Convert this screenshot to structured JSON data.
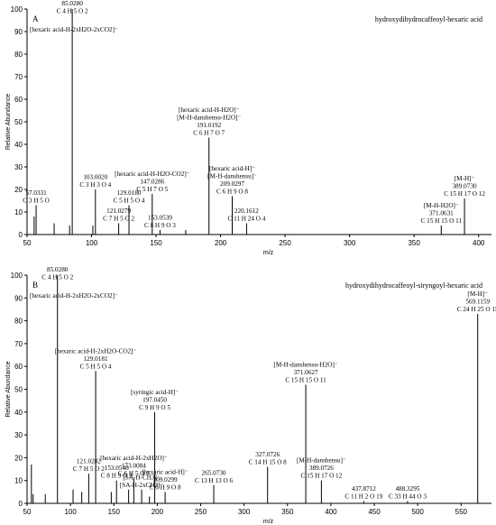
{
  "chart_data": [
    {
      "type": "bar",
      "panel": "A",
      "title": "hydroxydihydrocaffeoyl-hexaric acid",
      "xlabel": "m/z",
      "ylabel": "Relative Abundance",
      "xlim": [
        50,
        410
      ],
      "ylim": [
        0,
        100
      ],
      "xticks": [
        "50",
        "100",
        "150",
        "200",
        "250",
        "300",
        "350",
        "400"
      ],
      "yticks": [
        "0",
        "10",
        "20",
        "30",
        "40",
        "50",
        "60",
        "70",
        "80",
        "90",
        "100"
      ],
      "peaks": [
        {
          "mz": 55.5,
          "intensity": 8
        },
        {
          "mz": 57.03,
          "intensity": 13
        },
        {
          "mz": 71,
          "intensity": 5
        },
        {
          "mz": 83,
          "intensity": 4
        },
        {
          "mz": 85.03,
          "intensity": 100
        },
        {
          "mz": 101,
          "intensity": 4
        },
        {
          "mz": 103.0,
          "intensity": 20,
          "color": "#2e9a2e"
        },
        {
          "mz": 121.03,
          "intensity": 5
        },
        {
          "mz": 129.02,
          "intensity": 13
        },
        {
          "mz": 147.03,
          "intensity": 18
        },
        {
          "mz": 153.05,
          "intensity": 2
        },
        {
          "mz": 173,
          "intensity": 2
        },
        {
          "mz": 191.02,
          "intensity": 43
        },
        {
          "mz": 209.03,
          "intensity": 17
        },
        {
          "mz": 220.16,
          "intensity": 5
        },
        {
          "mz": 371.06,
          "intensity": 4
        },
        {
          "mz": 389.07,
          "intensity": 16
        }
      ],
      "labels": [
        {
          "lines": [
            "85.0280",
            "C 4 H 5 O 2",
            "[hexaric acid-H-2xH2O-2xCO2]⁻"
          ],
          "mz": 85.03,
          "intensity": 100,
          "align": "left"
        },
        {
          "lines": [
            "[hexaric acid-H-H2O]⁻",
            "[M-H-danshensu-H2O]⁻",
            "191.0192",
            "C 6 H 7 O 7"
          ],
          "mz": 191.02,
          "intensity": 43,
          "align": "middle"
        },
        {
          "lines": [
            "[hexaric acid-H]⁻",
            "[M-H-danshensu]⁻",
            "209.0297",
            "C 6 H 9 O 8"
          ],
          "mz": 209.03,
          "intensity": 17,
          "align": "middle"
        },
        {
          "lines": [
            "[hexaric acid-H-H2O-CO2]⁻",
            "147.0286",
            "C 5 H 7 O 5"
          ],
          "mz": 147.03,
          "intensity": 18,
          "align": "middle"
        },
        {
          "lines": [
            "103.0020",
            "C 3 H 3 O 4"
          ],
          "mz": 103.0,
          "intensity": 20,
          "align": "middle"
        },
        {
          "lines": [
            "129.0180",
            "C 5 H 5 O 4"
          ],
          "mz": 129.02,
          "intensity": 13,
          "align": "middle"
        },
        {
          "lines": [
            "121.0279",
            "C 7 H 5 O 2"
          ],
          "mz": 121.03,
          "intensity": 5,
          "align": "middle"
        },
        {
          "lines": [
            "153.0539",
            "C 8 H 9 O 3"
          ],
          "mz": 153.05,
          "intensity": 2,
          "align": "middle"
        },
        {
          "lines": [
            "57.0331",
            "C 3 H 5 O"
          ],
          "mz": 57.03,
          "intensity": 13,
          "align": "middle"
        },
        {
          "lines": [
            "220.1612",
            "C 11 H 24 O 4"
          ],
          "mz": 220.16,
          "intensity": 5,
          "align": "middle"
        },
        {
          "lines": [
            "[M-H-H2O]⁻",
            "371.0631",
            "C 15 H 15 O 11"
          ],
          "mz": 371.06,
          "intensity": 4,
          "align": "middle"
        },
        {
          "lines": [
            "[M-H]⁻",
            "389.0730",
            "C 15 H 17 O 12"
          ],
          "mz": 389.07,
          "intensity": 16,
          "align": "middle"
        }
      ]
    },
    {
      "type": "bar",
      "panel": "B",
      "title": "hydroxydihydrocaffeoyl-siryngoyl-hexaric acid",
      "xlabel": "m/z",
      "ylabel": "Relative Abundance",
      "xlim": [
        50,
        585
      ],
      "ylim": [
        0,
        100
      ],
      "xticks": [
        "50",
        "100",
        "150",
        "200",
        "250",
        "300",
        "350",
        "400",
        "450",
        "500",
        "550"
      ],
      "yticks": [
        "0",
        "10",
        "20",
        "30",
        "40",
        "50",
        "60",
        "70",
        "80",
        "90",
        "100"
      ],
      "peaks": [
        {
          "mz": 55,
          "intensity": 17
        },
        {
          "mz": 57,
          "intensity": 4
        },
        {
          "mz": 71,
          "intensity": 4
        },
        {
          "mz": 85.03,
          "intensity": 100
        },
        {
          "mz": 103,
          "intensity": 6
        },
        {
          "mz": 113,
          "intensity": 5
        },
        {
          "mz": 121.03,
          "intensity": 13
        },
        {
          "mz": 129.02,
          "intensity": 58
        },
        {
          "mz": 147,
          "intensity": 5
        },
        {
          "mz": 153.05,
          "intensity": 10
        },
        {
          "mz": 167,
          "intensity": 6
        },
        {
          "mz": 173.01,
          "intensity": 11
        },
        {
          "mz": 182,
          "intensity": 6
        },
        {
          "mz": 191,
          "intensity": 3
        },
        {
          "mz": 197.05,
          "intensity": 40
        },
        {
          "mz": 209.03,
          "intensity": 5
        },
        {
          "mz": 265.07,
          "intensity": 8
        },
        {
          "mz": 327.07,
          "intensity": 16
        },
        {
          "mz": 371.06,
          "intensity": 52
        },
        {
          "mz": 389.07,
          "intensity": 10
        },
        {
          "mz": 437.87,
          "intensity": 1
        },
        {
          "mz": 488.33,
          "intensity": 1
        },
        {
          "mz": 569.12,
          "intensity": 83
        }
      ],
      "labels": [
        {
          "lines": [
            "85.0280",
            "C 4 H 5 O 2",
            "[hexaric acid-H-2xH2O-2xCO2]⁻"
          ],
          "mz": 85.03,
          "intensity": 100,
          "align": "left"
        },
        {
          "lines": [
            "[hexaric acid-H-2xH2O-CO2]⁻",
            "129.0181",
            "C 5 H 5 O 4"
          ],
          "mz": 129.02,
          "intensity": 58,
          "align": "middle"
        },
        {
          "lines": [
            "[syringic acid-H]⁻",
            "197.0450",
            "C 9 H 9 O 5"
          ],
          "mz": 197.05,
          "intensity": 40,
          "align": "middle"
        },
        {
          "lines": [
            "[hexaric acid-H-2xH2O]⁻",
            "173.0084",
            "C 6 H 5 O 6"
          ],
          "mz": 173.01,
          "intensity": 11,
          "align": "middle"
        },
        {
          "lines": [
            "121.0282",
            "C 7 H 5 O 2"
          ],
          "mz": 121.03,
          "intensity": 13,
          "align": "middle"
        },
        {
          "lines": [
            "153.0548",
            "C 8 H 9 O 3"
          ],
          "mz": 153.05,
          "intensity": 10,
          "align": "middle"
        },
        {
          "lines": [
            "[SA-H-CH3]⁻",
            "[SA-H-2xCH3]⁻"
          ],
          "mz": 182,
          "intensity": 6,
          "align": "middle"
        },
        {
          "lines": [
            "[hexaric acid-H]⁻",
            "209.0299",
            "C 6 H 9 O 8"
          ],
          "mz": 209.03,
          "intensity": 5,
          "align": "middle"
        },
        {
          "lines": [
            "265.0730",
            "C 13 H 13 O 6"
          ],
          "mz": 265.07,
          "intensity": 8,
          "align": "middle"
        },
        {
          "lines": [
            "327.0726",
            "C 14 H 15 O 8"
          ],
          "mz": 327.07,
          "intensity": 16,
          "align": "middle"
        },
        {
          "lines": [
            "[M-H-danshensu-H2O]⁻",
            "371.0627",
            "C 15 H 15 O 11"
          ],
          "mz": 371.06,
          "intensity": 52,
          "align": "middle"
        },
        {
          "lines": [
            "[M-H-danshensu]⁻",
            "389.0726",
            "C 15 H 17 O 12"
          ],
          "mz": 389.07,
          "intensity": 10,
          "align": "middle"
        },
        {
          "lines": [
            "437.8712",
            "C 11 H 2 O 19"
          ],
          "mz": 437.87,
          "intensity": 1,
          "align": "middle"
        },
        {
          "lines": [
            "488.3295",
            "C 33 H 44 O 3"
          ],
          "mz": 488.33,
          "intensity": 1,
          "align": "middle"
        },
        {
          "lines": [
            "[M-H]⁻",
            "569.1159",
            "C 24 H 25 O 15"
          ],
          "mz": 569.12,
          "intensity": 83,
          "align": "middle"
        }
      ]
    }
  ]
}
